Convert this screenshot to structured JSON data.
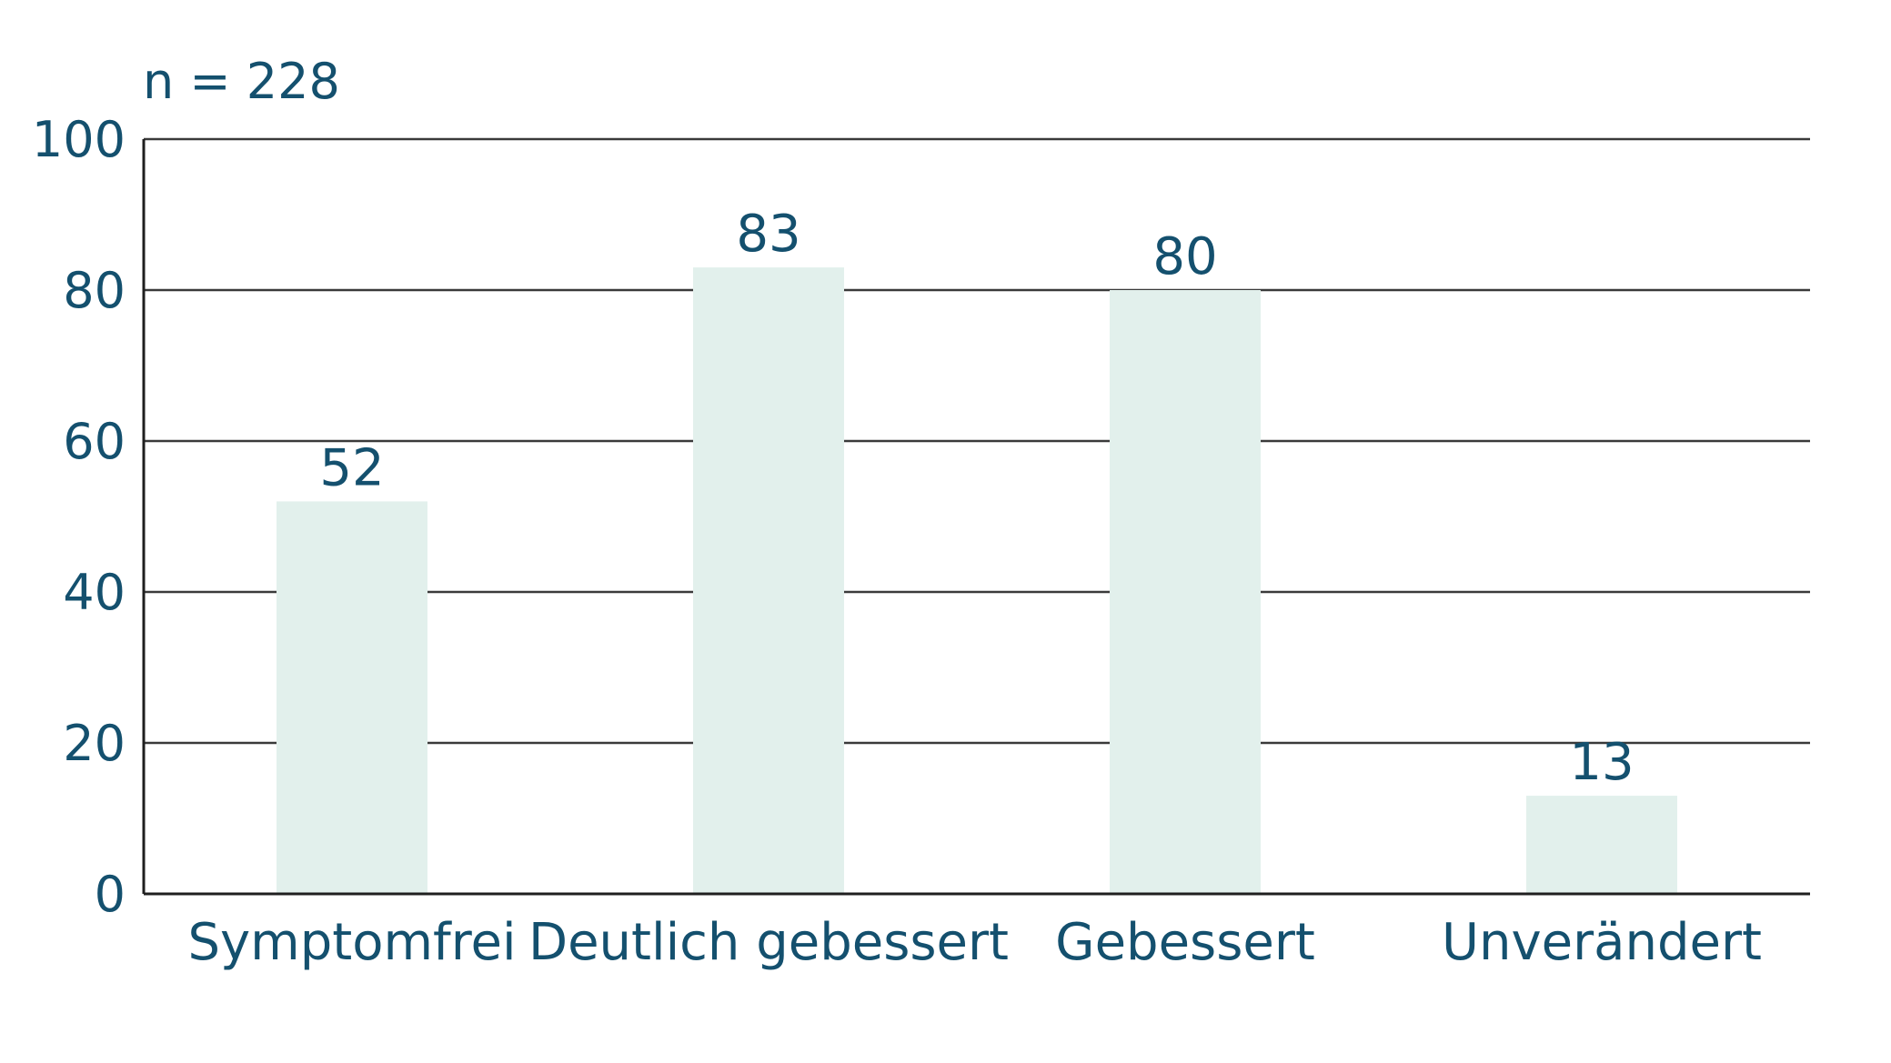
{
  "chart_data": {
    "type": "bar",
    "annotation": "n = 228",
    "categories": [
      "Symptomfrei",
      "Deutlich gebessert",
      "Gebessert",
      "Unverändert"
    ],
    "values": [
      52,
      83,
      80,
      13
    ],
    "data_labels": [
      "52",
      "83",
      "80",
      "13"
    ],
    "y_ticks": [
      "0",
      "20",
      "40",
      "60",
      "80",
      "100"
    ],
    "ylim": [
      0,
      100
    ],
    "grid": true,
    "colors": {
      "bar": "#e2f0ec",
      "text": "#14506e",
      "grid": "#3a3a3a"
    }
  }
}
